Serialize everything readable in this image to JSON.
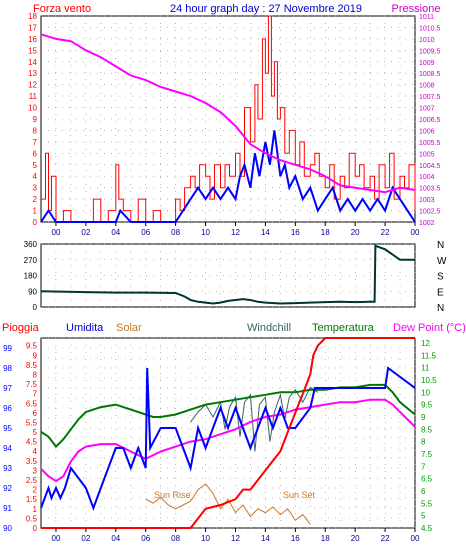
{
  "header": {
    "left_label": "Forza vento",
    "title": "24 hour graph day : 27 Novembre 2019",
    "right_label": "Pressione"
  },
  "colors": {
    "wind": "#ff0000",
    "gust": "#0000ff",
    "pressure": "#ff00ff",
    "direction": "#003333",
    "rain": "#ff0000",
    "humidity": "#0000ff",
    "solar": "#cc7722",
    "windchill": "#336666",
    "temperature": "#007700",
    "dewpoint": "#ff00ff",
    "grid": "#888888",
    "axis": "#000000",
    "left_ticks": "#ff0000",
    "right_ticks": "#cc00cc",
    "bottom_ticks": "#000099",
    "bottom_right_ticks": "#009900"
  },
  "chart_data": [
    {
      "type": "line",
      "id": "wind-pressure",
      "x_ticks": [
        "00",
        "02",
        "04",
        "06",
        "08",
        "10",
        "12",
        "14",
        "16",
        "18",
        "20",
        "22",
        "00"
      ],
      "x_range": [
        -1,
        24
      ],
      "y_left_ticks": [
        "0",
        "1",
        "2",
        "3",
        "4",
        "5",
        "6",
        "7",
        "8",
        "9",
        "10",
        "11",
        "12",
        "13",
        "14",
        "15",
        "16",
        "17",
        "18"
      ],
      "y_left_range": [
        0,
        18
      ],
      "y_right_ticks": [
        "1002",
        "1002.5",
        "1003",
        "1003.5",
        "1004",
        "1004.5",
        "1005",
        "1005.5",
        "1006",
        "1006.5",
        "1007",
        "1007.5",
        "1008",
        "1008.5",
        "1009",
        "1009.5",
        "1010",
        "1010.5",
        "1011"
      ],
      "y_right_range": [
        1002,
        1011
      ],
      "series": [
        {
          "name": "Forza vento",
          "axis": "left",
          "color_key": "wind",
          "x": [
            -1,
            -0.7,
            -0.5,
            -0.3,
            0,
            0.5,
            1,
            1.5,
            2,
            2.5,
            3,
            3.5,
            4,
            4.2,
            4.5,
            5,
            5.5,
            6,
            6.5,
            7,
            7.5,
            8,
            8.3,
            8.6,
            9,
            9.3,
            9.6,
            10,
            10.3,
            10.6,
            11,
            11.3,
            11.6,
            12,
            12.3,
            12.6,
            13,
            13.3,
            13.5,
            13.8,
            14,
            14.2,
            14.4,
            14.6,
            14.8,
            15,
            15.3,
            15.6,
            16,
            16.3,
            16.6,
            17,
            17.3,
            17.6,
            18,
            18.3,
            18.6,
            19,
            19.3,
            19.6,
            20,
            20.3,
            20.6,
            21,
            21.3,
            21.6,
            22,
            22.3,
            22.6,
            23,
            23.3,
            23.6,
            24
          ],
          "y": [
            2,
            6,
            1,
            4,
            0,
            1,
            0,
            0,
            0,
            2,
            0,
            1,
            5,
            2,
            1,
            0,
            2,
            0,
            1,
            0,
            0,
            2,
            1,
            3,
            4,
            3,
            5,
            4,
            2,
            5,
            3,
            5,
            4,
            6,
            4,
            10,
            7,
            12,
            9,
            16,
            13,
            18,
            11,
            14,
            9,
            10,
            6,
            8,
            5,
            7,
            4,
            5,
            6,
            4,
            3,
            5,
            2,
            4,
            3,
            6,
            4,
            5,
            3,
            4,
            2,
            5,
            3,
            6,
            2,
            4,
            3,
            5,
            1
          ]
        },
        {
          "name": "",
          "axis": "left",
          "color_key": "gust",
          "x": [
            -1,
            -0.5,
            0,
            1,
            2,
            3,
            4,
            4.3,
            5,
            6,
            7,
            8,
            8.5,
            9,
            9.5,
            10,
            10.5,
            11,
            11.5,
            12,
            12.3,
            12.6,
            13,
            13.3,
            13.6,
            14,
            14.3,
            14.6,
            15,
            15.3,
            15.6,
            16,
            16.5,
            17,
            17.5,
            18,
            18.5,
            19,
            19.5,
            20,
            20.5,
            21,
            21.5,
            22,
            22.5,
            23,
            23.5,
            24
          ],
          "y": [
            0,
            1,
            0,
            0,
            0,
            0,
            0,
            1,
            0,
            0,
            0,
            0,
            1,
            2,
            3,
            2,
            3,
            2,
            3,
            2,
            4,
            5,
            3,
            6,
            4,
            7,
            5,
            8,
            4,
            5,
            3,
            4,
            2,
            3,
            1,
            2,
            3,
            1,
            2,
            1,
            2,
            1,
            2,
            1,
            3,
            2,
            1,
            0
          ]
        },
        {
          "name": "Pressione",
          "axis": "right",
          "color_key": "pressure",
          "x": [
            -1,
            0,
            1,
            2,
            3,
            4,
            5,
            6,
            7,
            8,
            9,
            10,
            11,
            12,
            13,
            14,
            15,
            16,
            17,
            18,
            19,
            20,
            21,
            22,
            23,
            24
          ],
          "y": [
            1010.2,
            1010.0,
            1009.9,
            1009.5,
            1009.2,
            1008.8,
            1008.4,
            1008.2,
            1007.9,
            1007.7,
            1007.5,
            1007.2,
            1006.8,
            1006.2,
            1005.4,
            1005.0,
            1004.7,
            1004.5,
            1004.3,
            1004.0,
            1003.6,
            1003.5,
            1003.4,
            1003.3,
            1003.5,
            1003.4
          ]
        }
      ]
    },
    {
      "type": "line",
      "id": "wind-direction",
      "y_left_ticks": [
        "0",
        "90",
        "180",
        "270",
        "360"
      ],
      "y_left_range": [
        0,
        360
      ],
      "y_right_ticks": [
        "N",
        "W",
        "S",
        "E",
        "N"
      ],
      "series": [
        {
          "name": "",
          "color_key": "direction",
          "x": [
            -1,
            2,
            4,
            6,
            8,
            8.6,
            9,
            9.5,
            10,
            10.5,
            11,
            11.5,
            12,
            12.5,
            13,
            13.5,
            14,
            15,
            16,
            17,
            18,
            19,
            20,
            21,
            21.3,
            21.35,
            22,
            23,
            24
          ],
          "y": [
            90,
            85,
            82,
            82,
            80,
            60,
            40,
            30,
            25,
            20,
            25,
            35,
            40,
            45,
            40,
            30,
            25,
            20,
            22,
            25,
            28,
            30,
            28,
            30,
            30,
            350,
            330,
            270,
            270
          ]
        }
      ]
    },
    {
      "type": "line",
      "id": "weather",
      "labels": [
        "Pioggia",
        "Umidita",
        "Solar",
        "Windchill",
        "Temperatura",
        "Dew Point (°C)"
      ],
      "y_left_ticks": [
        "90",
        "91",
        "92",
        "93",
        "94",
        "95",
        "96",
        "97",
        "98",
        "99"
      ],
      "y_left_range": [
        90,
        99.5
      ],
      "y_mid_ticks": [
        "0",
        "0.5",
        "1",
        "1.5",
        "2",
        "2.5",
        "3",
        "3.5",
        "4",
        "4.5",
        "5",
        "5.5",
        "6",
        "6.5",
        "7",
        "7.5",
        "8",
        "8.5",
        "9",
        "9.5"
      ],
      "y_mid_range": [
        0,
        9.9
      ],
      "y_right_ticks": [
        "4.5",
        "5",
        "5.5",
        "6",
        "6.5",
        "7",
        "7.5",
        "8",
        "8.5",
        "9",
        "9.5",
        "10",
        "10.5",
        "11",
        "11.5",
        "12"
      ],
      "y_right_range": [
        4.5,
        12.2
      ],
      "annotations": [
        "Sun Rise",
        "Sun Set"
      ],
      "series": [
        {
          "name": "Pioggia",
          "axis": "mid",
          "color_key": "rain",
          "x": [
            -1,
            9,
            9.5,
            10,
            11,
            12,
            12.5,
            13,
            13.5,
            14,
            14.5,
            15,
            15.5,
            16,
            16.5,
            17,
            17.2,
            17.5,
            18,
            24
          ],
          "y": [
            0,
            0,
            0.5,
            1,
            1.2,
            1.5,
            2,
            2,
            2.5,
            3,
            3.5,
            4,
            5,
            6,
            7,
            8,
            9,
            9.5,
            9.9,
            9.9
          ]
        },
        {
          "name": "Umidita",
          "axis": "left",
          "color_key": "humidity",
          "x": [
            -1,
            -0.5,
            -0.3,
            0,
            0.3,
            0.6,
            1,
            2,
            2.5,
            3,
            3.5,
            4,
            4.5,
            5,
            5.5,
            6,
            6.1,
            6.3,
            7,
            8,
            8.5,
            9,
            9.5,
            10,
            10.5,
            11,
            11.5,
            12,
            12.5,
            13,
            13.5,
            14,
            14.5,
            15,
            15.5,
            16,
            17,
            17.3,
            18,
            21,
            22,
            22.2,
            24
          ],
          "y": [
            91,
            92,
            91.5,
            92,
            91.5,
            92,
            93,
            92,
            91,
            92,
            93,
            94,
            94,
            93,
            94,
            93,
            98,
            94,
            95,
            95,
            94,
            93,
            95,
            94,
            95,
            96,
            95,
            96,
            95,
            94,
            95,
            96,
            95,
            96,
            95,
            95,
            96,
            97,
            97,
            97,
            97,
            98,
            97
          ]
        },
        {
          "name": "Solar",
          "axis": "mid",
          "color_key": "solar",
          "x": [
            6,
            6.5,
            7,
            7.5,
            8,
            8.5,
            9,
            9.5,
            10,
            10.5,
            11,
            11.5,
            12,
            12.5,
            13,
            13.5,
            14,
            14.5,
            15,
            15.5,
            16,
            16.5,
            17
          ],
          "y": [
            1.5,
            1.3,
            1.6,
            1.2,
            1.0,
            1.2,
            1.4,
            2.0,
            2.3,
            1.8,
            1.0,
            1.5,
            0.8,
            1.2,
            0.6,
            1.0,
            0.8,
            1.1,
            0.7,
            1.0,
            0.4,
            0.7,
            0.2
          ]
        },
        {
          "name": "Windchill",
          "axis": "right",
          "color_key": "windchill",
          "x": [
            9,
            9.5,
            10,
            10.5,
            11,
            11.3,
            11.6,
            12,
            12.3,
            12.6,
            13,
            13.3,
            13.6,
            14,
            14.3,
            14.6,
            15,
            15.3,
            15.6,
            16,
            16.5,
            17,
            17.5
          ],
          "y": [
            8.8,
            9.2,
            9.5,
            9,
            9.6,
            8.5,
            9.4,
            9.8,
            8.2,
            9.6,
            9.9,
            7.6,
            9.5,
            9.8,
            8.0,
            9.2,
            9.9,
            8.9,
            9.8,
            10.1,
            9.6,
            10.2,
            10.0
          ]
        },
        {
          "name": "Temperatura",
          "axis": "right",
          "color_key": "temperature",
          "x": [
            -1,
            -0.5,
            0,
            0.5,
            1,
            1.5,
            2,
            3,
            4,
            5,
            6,
            6.5,
            7,
            8,
            9,
            10,
            11,
            12,
            13,
            14,
            15,
            16,
            17,
            18,
            19,
            20,
            21,
            22,
            22.5,
            23,
            24
          ],
          "y": [
            8.4,
            8.2,
            7.8,
            8.1,
            8.5,
            8.9,
            9.2,
            9.4,
            9.5,
            9.3,
            9.1,
            9.0,
            9.0,
            9.1,
            9.3,
            9.5,
            9.6,
            9.7,
            9.8,
            9.9,
            10.0,
            10.0,
            10.1,
            10.1,
            10.2,
            10.2,
            10.3,
            10.3,
            10.0,
            9.6,
            9.1
          ]
        },
        {
          "name": "Dew Point",
          "axis": "right",
          "color_key": "dewpoint",
          "x": [
            -1,
            -0.5,
            0,
            0.5,
            1,
            1.5,
            2,
            3,
            4,
            5,
            6,
            7,
            8,
            9,
            10,
            11,
            12,
            13,
            14,
            15,
            16,
            17,
            18,
            19,
            20,
            21,
            22,
            22.5,
            23,
            24
          ],
          "y": [
            6.9,
            6.6,
            6.4,
            6.6,
            7.2,
            7.6,
            7.8,
            7.9,
            7.9,
            7.6,
            7.3,
            7.6,
            7.8,
            8.0,
            8.1,
            8.3,
            8.5,
            8.8,
            9.0,
            9.1,
            9.3,
            9.4,
            9.5,
            9.6,
            9.6,
            9.7,
            9.7,
            9.5,
            9.2,
            8.6
          ]
        }
      ]
    }
  ]
}
